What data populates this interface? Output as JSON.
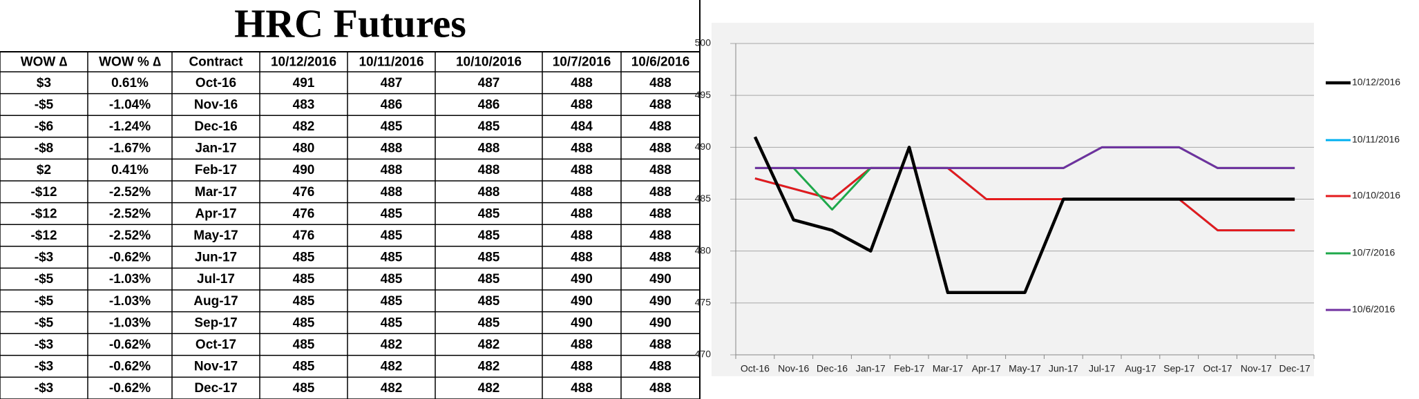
{
  "table": {
    "title": "HRC Futures",
    "header": [
      "WOW ∆",
      "WOW % ∆",
      "Contract",
      "10/12/2016",
      "10/11/2016",
      "10/10/2016",
      "10/7/2016",
      "10/6/2016"
    ],
    "rows": [
      [
        "$3",
        "0.61%",
        "Oct-16",
        491,
        487,
        487,
        488,
        488
      ],
      [
        "-$5",
        "-1.04%",
        "Nov-16",
        483,
        486,
        486,
        488,
        488
      ],
      [
        "-$6",
        "-1.24%",
        "Dec-16",
        482,
        485,
        485,
        484,
        488
      ],
      [
        "-$8",
        "-1.67%",
        "Jan-17",
        480,
        488,
        488,
        488,
        488
      ],
      [
        "$2",
        "0.41%",
        "Feb-17",
        490,
        488,
        488,
        488,
        488
      ],
      [
        "-$12",
        "-2.52%",
        "Mar-17",
        476,
        488,
        488,
        488,
        488
      ],
      [
        "-$12",
        "-2.52%",
        "Apr-17",
        476,
        485,
        485,
        488,
        488
      ],
      [
        "-$12",
        "-2.52%",
        "May-17",
        476,
        485,
        485,
        488,
        488
      ],
      [
        "-$3",
        "-0.62%",
        "Jun-17",
        485,
        485,
        485,
        488,
        488
      ],
      [
        "-$5",
        "-1.03%",
        "Jul-17",
        485,
        485,
        485,
        490,
        490
      ],
      [
        "-$5",
        "-1.03%",
        "Aug-17",
        485,
        485,
        485,
        490,
        490
      ],
      [
        "-$5",
        "-1.03%",
        "Sep-17",
        485,
        485,
        485,
        490,
        490
      ],
      [
        "-$3",
        "-0.62%",
        "Oct-17",
        485,
        482,
        482,
        488,
        488
      ],
      [
        "-$3",
        "-0.62%",
        "Nov-17",
        485,
        482,
        482,
        488,
        488
      ],
      [
        "-$3",
        "-0.62%",
        "Dec-17",
        485,
        482,
        482,
        488,
        488
      ]
    ]
  },
  "chart_data": {
    "type": "line",
    "categories": [
      "Oct-16",
      "Nov-16",
      "Dec-16",
      "Jan-17",
      "Feb-17",
      "Mar-17",
      "Apr-17",
      "May-17",
      "Jun-17",
      "Jul-17",
      "Aug-17",
      "Sep-17",
      "Oct-17",
      "Nov-17",
      "Dec-17"
    ],
    "series": [
      {
        "name": "10/12/2016",
        "color": "#000000",
        "values": [
          491,
          483,
          482,
          480,
          490,
          476,
          476,
          476,
          485,
          485,
          485,
          485,
          485,
          485,
          485
        ]
      },
      {
        "name": "10/11/2016",
        "color": "#00b0f0",
        "values": [
          487,
          486,
          485,
          488,
          488,
          488,
          485,
          485,
          485,
          485,
          485,
          485,
          482,
          482,
          482
        ]
      },
      {
        "name": "10/10/2016",
        "color": "#e41a1c",
        "values": [
          487,
          486,
          485,
          488,
          488,
          488,
          485,
          485,
          485,
          485,
          485,
          485,
          482,
          482,
          482
        ]
      },
      {
        "name": "10/7/2016",
        "color": "#1ea84a",
        "values": [
          488,
          488,
          484,
          488,
          488,
          488,
          488,
          488,
          488,
          490,
          490,
          490,
          488,
          488,
          488
        ]
      },
      {
        "name": "10/6/2016",
        "color": "#7030a0",
        "values": [
          488,
          488,
          488,
          488,
          488,
          488,
          488,
          488,
          488,
          490,
          490,
          490,
          488,
          488,
          488
        ]
      }
    ],
    "ylim": [
      470,
      500
    ],
    "yticks": [
      470,
      475,
      480,
      485,
      490,
      495,
      500
    ],
    "grid": true,
    "legend": "right"
  }
}
